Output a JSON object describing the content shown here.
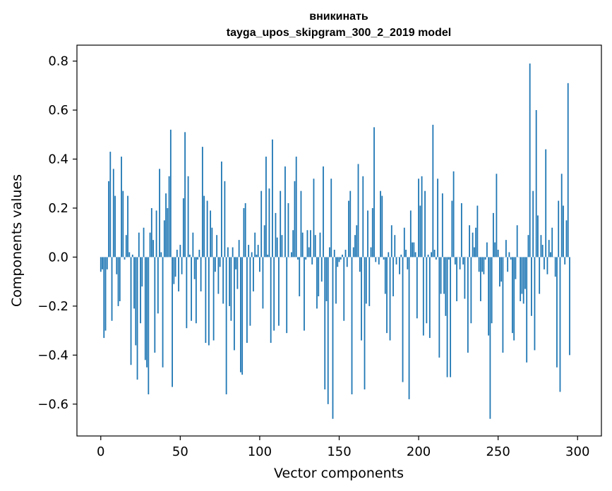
{
  "chart_data": {
    "type": "bar",
    "title": "вникинать",
    "subtitle": "tayga_upos_skipgram_300_2_2019 model",
    "xlabel": "Vector components",
    "ylabel": "Components values",
    "xlim": [
      -15,
      315
    ],
    "ylim": [
      -0.73,
      0.865
    ],
    "xticks": [
      0,
      50,
      100,
      150,
      200,
      250,
      300
    ],
    "xtick_labels": [
      "0",
      "50",
      "100",
      "150",
      "200",
      "250",
      "300"
    ],
    "yticks": [
      -0.6,
      -0.4,
      -0.2,
      0.0,
      0.2,
      0.4,
      0.6,
      0.8
    ],
    "ytick_labels": [
      "−0.6",
      "−0.4",
      "−0.2",
      "0.0",
      "0.2",
      "0.4",
      "0.6",
      "0.8"
    ],
    "bar_color": "#1f77b4",
    "grid": false,
    "values": [
      -0.06,
      -0.05,
      -0.33,
      -0.3,
      -0.05,
      0.31,
      0.43,
      -0.26,
      0.36,
      0.25,
      -0.07,
      -0.2,
      -0.18,
      0.41,
      0.27,
      -0.01,
      0.09,
      0.25,
      0.02,
      -0.44,
      0.01,
      -0.21,
      -0.36,
      -0.5,
      0.1,
      -0.27,
      -0.12,
      0.12,
      -0.42,
      -0.45,
      -0.56,
      0.1,
      0.2,
      0.07,
      -0.39,
      0.19,
      -0.23,
      0.36,
      0.02,
      -0.45,
      0.15,
      0.26,
      0.2,
      0.33,
      0.52,
      -0.53,
      -0.11,
      -0.08,
      0.03,
      -0.14,
      0.05,
      -0.07,
      0.24,
      0.51,
      -0.29,
      0.33,
      0.01,
      -0.26,
      0.1,
      -0.09,
      -0.27,
      -0.01,
      0.03,
      -0.14,
      0.45,
      0.25,
      -0.35,
      0.23,
      -0.36,
      0.19,
      0.12,
      -0.34,
      -0.06,
      0.09,
      -0.15,
      -0.04,
      0.39,
      -0.19,
      0.31,
      -0.56,
      0.04,
      -0.2,
      -0.26,
      0.04,
      -0.38,
      -0.05,
      -0.13,
      0.07,
      -0.47,
      -0.48,
      0.2,
      0.22,
      -0.35,
      0.05,
      -0.28,
      0.02,
      -0.14,
      0.1,
      0.01,
      0.05,
      -0.06,
      0.27,
      -0.21,
      0.13,
      0.41,
      0.01,
      0.28,
      -0.35,
      0.48,
      -0.3,
      0.18,
      0.08,
      -0.28,
      0.27,
      0.09,
      0.0,
      0.37,
      -0.31,
      0.22,
      0.0,
      0.02,
      0.11,
      0.31,
      0.41,
      -0.01,
      -0.16,
      0.27,
      0.1,
      -0.3,
      -0.01,
      0.11,
      0.04,
      0.11,
      -0.03,
      0.32,
      0.09,
      -0.21,
      -0.16,
      0.1,
      -0.1,
      0.37,
      -0.54,
      -0.18,
      -0.6,
      0.04,
      0.32,
      -0.66,
      0.03,
      -0.19,
      -0.04,
      -0.02,
      -0.01,
      0.01,
      -0.26,
      0.03,
      -0.04,
      0.23,
      0.27,
      -0.56,
      0.04,
      0.09,
      0.13,
      0.38,
      -0.06,
      -0.34,
      0.33,
      -0.54,
      -0.19,
      0.19,
      -0.2,
      0.04,
      0.2,
      0.53,
      -0.02,
      0.0,
      -0.03,
      0.27,
      0.25,
      -0.01,
      -0.15,
      -0.31,
      0.02,
      -0.34,
      0.13,
      -0.16,
      0.09,
      -0.03,
      0.0,
      -0.07,
      0.01,
      -0.51,
      0.12,
      0.03,
      -0.05,
      -0.58,
      0.19,
      0.06,
      0.06,
      0.02,
      -0.25,
      0.32,
      0.21,
      0.33,
      -0.32,
      0.27,
      -0.27,
      0.01,
      -0.33,
      0.02,
      0.54,
      0.03,
      -0.01,
      0.32,
      -0.41,
      -0.15,
      0.26,
      -0.15,
      -0.24,
      -0.49,
      -0.01,
      -0.49,
      0.23,
      0.35,
      -0.03,
      -0.18,
      0.0,
      -0.05,
      0.22,
      -0.03,
      -0.17,
      0.0,
      -0.39,
      0.13,
      -0.27,
      0.1,
      0.04,
      0.12,
      0.21,
      -0.06,
      -0.18,
      -0.06,
      -0.07,
      -0.01,
      0.06,
      -0.32,
      -0.66,
      -0.27,
      0.18,
      0.06,
      0.34,
      0.03,
      -0.12,
      -0.1,
      -0.39,
      0.0,
      0.07,
      -0.06,
      0.02,
      -0.01,
      -0.31,
      -0.34,
      -0.09,
      0.13,
      0.0,
      -0.18,
      -0.15,
      -0.19,
      -0.13,
      -0.43,
      0.09,
      0.79,
      -0.24,
      0.27,
      -0.38,
      0.6,
      0.17,
      -0.15,
      0.09,
      0.05,
      -0.05,
      0.44,
      -0.07,
      0.07,
      0.02,
      0.12,
      0.0,
      -0.08,
      -0.45,
      0.23,
      -0.55,
      0.34,
      0.21,
      -0.03,
      0.15,
      0.71,
      -0.4
    ]
  }
}
